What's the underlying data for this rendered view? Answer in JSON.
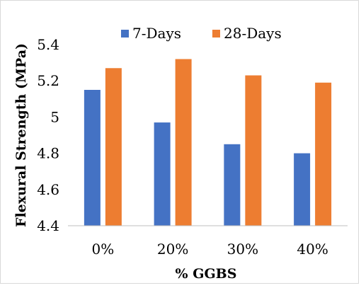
{
  "chart_data": {
    "type": "bar",
    "categories": [
      "0%",
      "20%",
      "30%",
      "40%"
    ],
    "series": [
      {
        "name": "7-Days",
        "color": "#4472C4",
        "values": [
          5.15,
          4.97,
          4.85,
          4.8
        ]
      },
      {
        "name": "28-Days",
        "color": "#ED7D31",
        "values": [
          5.27,
          5.32,
          5.23,
          5.19
        ]
      }
    ],
    "xlabel": "% GGBS",
    "ylabel": "Flexural Strength (MPa)",
    "ylim": [
      4.4,
      5.4
    ],
    "yticks": [
      4.4,
      4.6,
      4.8,
      5,
      5.2,
      5.4
    ],
    "ytick_labels": [
      "4.4",
      "4.6",
      "4.8",
      "5",
      "5.2",
      "5.4"
    ],
    "grid": false,
    "legend_position": "top"
  }
}
